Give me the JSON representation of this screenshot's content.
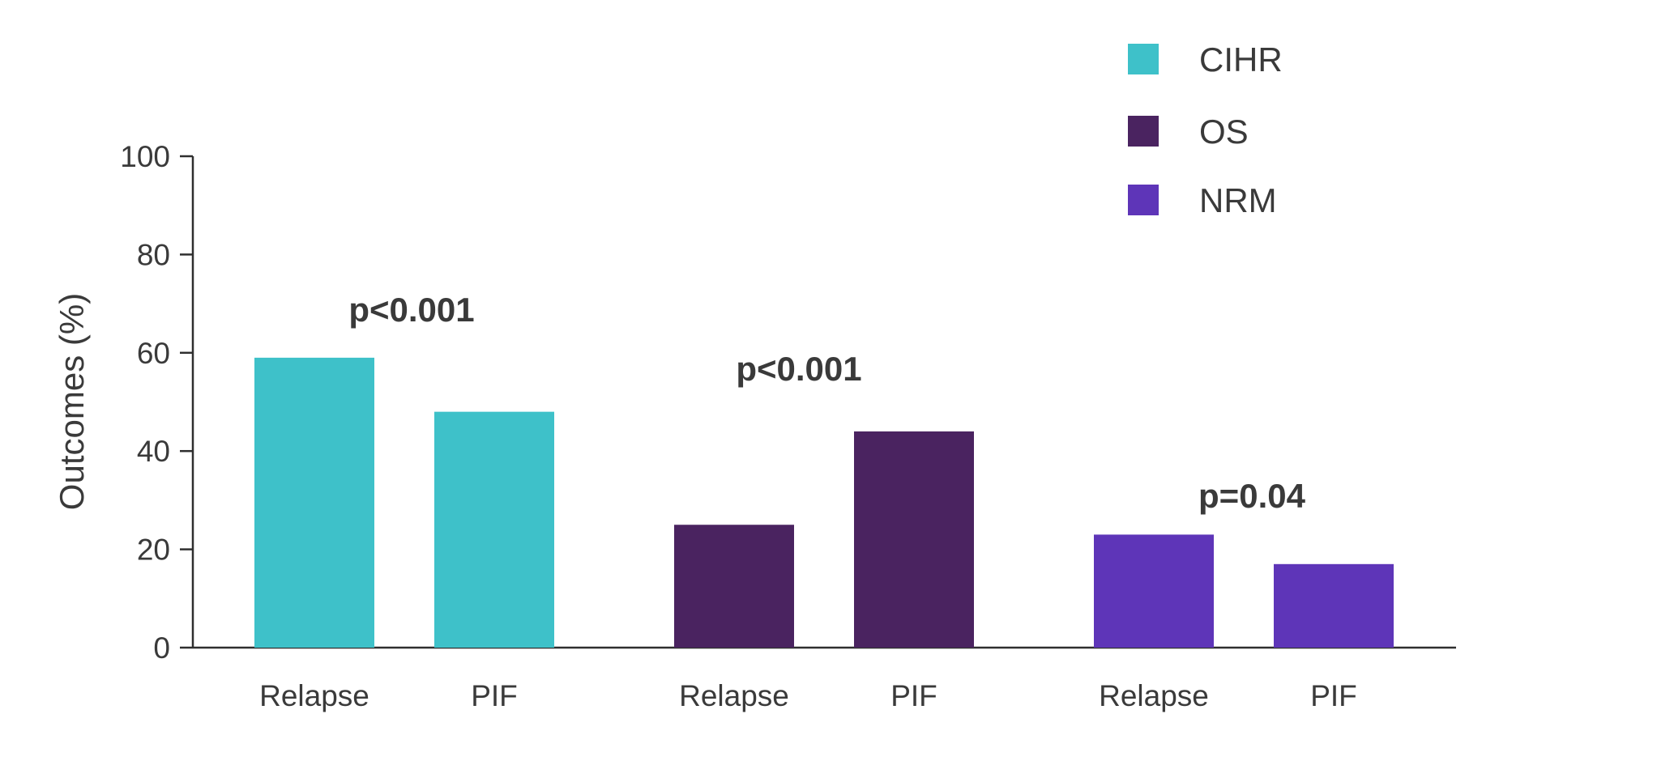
{
  "chart_data": {
    "type": "bar",
    "ylabel": "Outcomes (%)",
    "ylim": [
      0,
      100
    ],
    "yticks": [
      0,
      20,
      40,
      60,
      80,
      100
    ],
    "grid": false,
    "legend_position": "top-right",
    "groups": [
      {
        "name": "CIHR",
        "color": "#3ec1c9",
        "categories": [
          "Relapse",
          "PIF"
        ],
        "values": [
          59,
          48
        ],
        "annotation": "p<0.001"
      },
      {
        "name": "OS",
        "color": "#4a2360",
        "categories": [
          "Relapse",
          "PIF"
        ],
        "values": [
          25,
          44
        ],
        "annotation": "p<0.001"
      },
      {
        "name": "NRM",
        "color": "#5e35b8",
        "categories": [
          "Relapse",
          "PIF"
        ],
        "values": [
          23,
          17
        ],
        "annotation": "p=0.04"
      }
    ]
  }
}
